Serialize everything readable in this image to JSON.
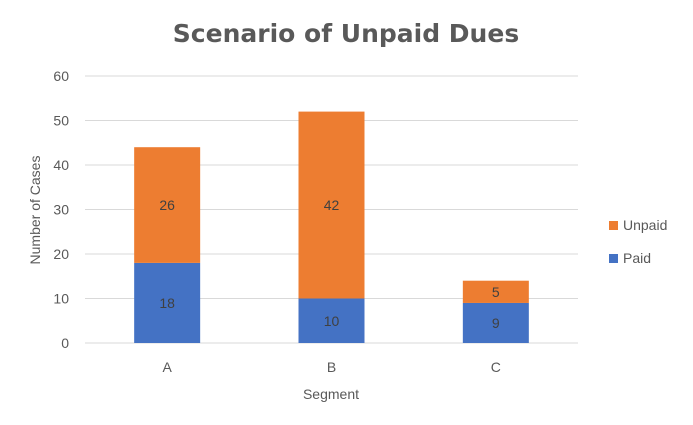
{
  "chart_data": {
    "type": "bar",
    "stacked": true,
    "title": "Scenario of Unpaid Dues",
    "xlabel": "Segment",
    "ylabel": "Number of Cases",
    "categories": [
      "A",
      "B",
      "C"
    ],
    "series": [
      {
        "name": "Paid",
        "values": [
          18,
          10,
          9
        ],
        "color": "#4472c4"
      },
      {
        "name": "Unpaid",
        "values": [
          26,
          42,
          5
        ],
        "color": "#ed7d31"
      }
    ],
    "ylim": [
      0,
      60
    ],
    "yticks": [
      0,
      10,
      20,
      30,
      40,
      50,
      60
    ],
    "grid": true,
    "legend_position": "right",
    "legend_order": [
      "Unpaid",
      "Paid"
    ],
    "data_labels": true
  }
}
